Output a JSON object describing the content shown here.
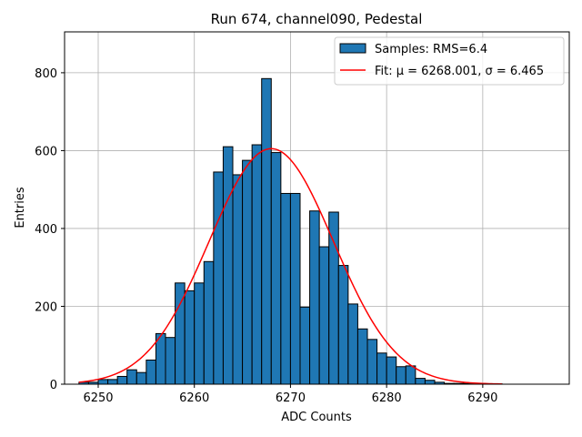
{
  "chart_data": {
    "type": "histogram",
    "title": "Run 674, channel090, Pedestal",
    "xlabel": "ADC Counts",
    "ylabel": "Entries",
    "xlim": [
      6246.5,
      6299
    ],
    "ylim": [
      0,
      905
    ],
    "x_ticks": [
      6250,
      6260,
      6270,
      6280,
      6290
    ],
    "y_ticks": [
      0,
      200,
      400,
      600,
      800
    ],
    "grid": true,
    "legend_position": "upper-right",
    "bin_width": 1,
    "bin_start": 6248,
    "counts": [
      5,
      5,
      12,
      12,
      20,
      37,
      30,
      62,
      130,
      120,
      260,
      240,
      260,
      315,
      545,
      610,
      538,
      575,
      615,
      785,
      595,
      490,
      490,
      198,
      445,
      353,
      442,
      305,
      206,
      142,
      115,
      80,
      70,
      45,
      47,
      15,
      10,
      5,
      2,
      2,
      2,
      1,
      1,
      1
    ],
    "series": [
      {
        "name": "Samples: RMS=6.4",
        "kind": "histogram",
        "color": "#1f77b4"
      },
      {
        "name": "Fit: μ = 6268.001, σ = 6.465",
        "kind": "gaussian",
        "color": "#ff0000",
        "mu": 6268.001,
        "sigma": 6.465,
        "amplitude": 605,
        "x_range": [
          6248,
          6292
        ]
      }
    ]
  }
}
